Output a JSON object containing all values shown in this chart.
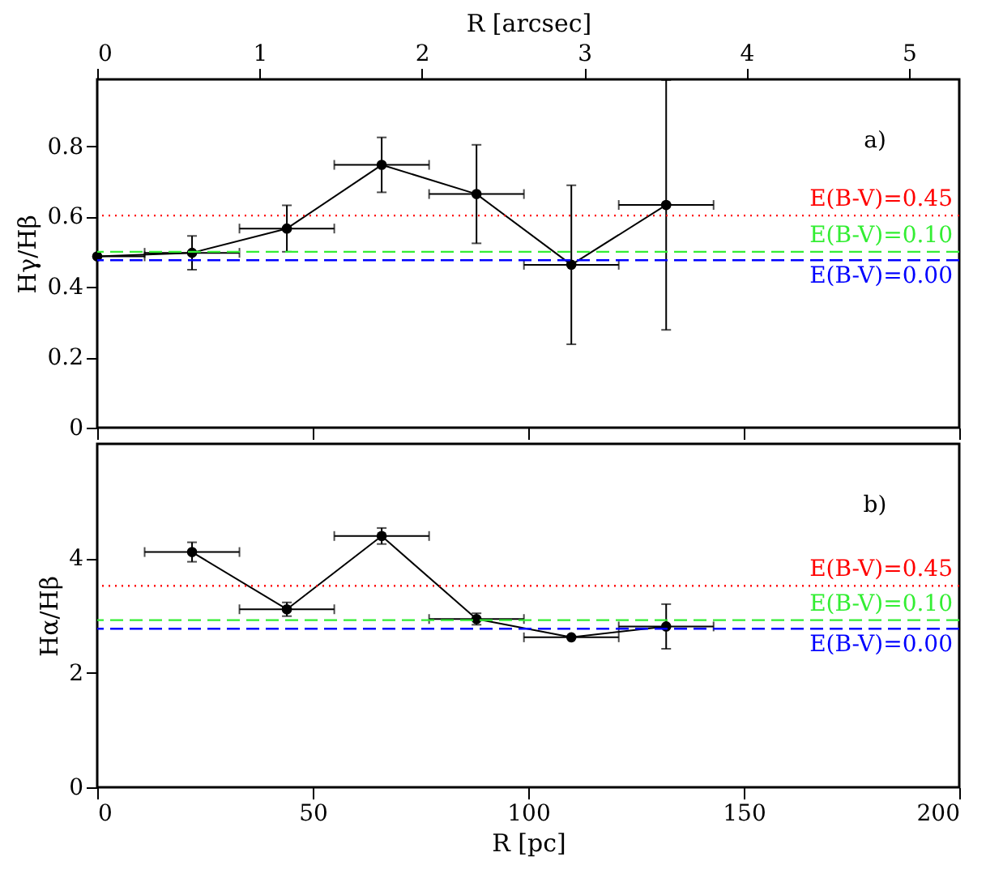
{
  "chart_data": [
    {
      "type": "line",
      "xlim": [
        0,
        200
      ],
      "x2lim": [
        0,
        5.31
      ],
      "x2ticks": [
        0,
        1,
        2,
        3,
        4,
        5
      ],
      "x2label": "R [arcsec]",
      "ylabel": "Hγ/Hβ",
      "ylim": [
        0,
        0.99
      ],
      "yticks": [
        0,
        0.2,
        0.4,
        0.6,
        0.8
      ],
      "tick_labels": "y",
      "grid": false,
      "marker": "circle",
      "x": [
        0,
        22,
        44,
        66,
        88,
        110,
        132
      ],
      "series": [
        {
          "color": "#000000",
          "values": [
            0.487,
            0.497,
            0.566,
            0.747,
            0.664,
            0.463,
            0.633
          ],
          "errors": [
            null,
            0.048,
            0.066,
            0.078,
            0.14,
            0.226,
            0.355
          ],
          "xerrors": [
            [
              0,
              11
            ],
            11,
            11,
            11,
            11,
            11,
            11
          ]
        }
      ],
      "ref_lines": [
        {
          "axis": "y",
          "value": 0.603,
          "color": "#ff0000",
          "line_style": "dotted"
        },
        {
          "axis": "y",
          "value": 0.5,
          "color": "#33ee33",
          "line_style": "dashed"
        },
        {
          "axis": "y",
          "value": 0.476,
          "color": "#0000ff",
          "line_style": "dashed"
        }
      ],
      "annotations": [
        "a)",
        {
          "text": "E(B-V)=0.45",
          "y": 0.603
        },
        {
          "text": "E(B-V)=0.10",
          "y": 0.5
        },
        {
          "text": "E(B-V)=0.00",
          "y": 0.476
        }
      ]
    },
    {
      "type": "line",
      "xlim": [
        0,
        200
      ],
      "xticks": [
        0,
        50,
        100,
        150,
        200
      ],
      "xlabel": "R [pc]",
      "ylabel": "Hα/Hβ",
      "ylim": [
        0,
        6
      ],
      "yticks": [
        0,
        2,
        4
      ],
      "grid": false,
      "marker": "circle",
      "x": [
        22,
        44,
        66,
        88,
        110,
        132
      ],
      "series": [
        {
          "color": "#000000",
          "values": [
            4.11,
            3.11,
            4.39,
            2.94,
            2.62,
            2.81
          ],
          "errors": [
            0.17,
            0.12,
            0.14,
            0.1,
            null,
            0.39
          ],
          "xerrors": [
            11,
            11,
            11,
            11,
            11,
            11
          ]
        }
      ],
      "ref_lines": [
        {
          "axis": "y",
          "value": 3.52,
          "color": "#ff0000",
          "line_style": "dotted"
        },
        {
          "axis": "y",
          "value": 2.92,
          "color": "#33ee33",
          "line_style": "dashed"
        },
        {
          "axis": "y",
          "value": 2.77,
          "color": "#0000ff",
          "line_style": "dashed"
        }
      ],
      "annotations": [
        "b)",
        {
          "text": "E(B-V)=0.45",
          "y": 3.52
        },
        {
          "text": "E(B-V)=0.10",
          "y": 2.92
        },
        {
          "text": "E(B-V)=0.00",
          "y": 2.77
        }
      ]
    }
  ]
}
